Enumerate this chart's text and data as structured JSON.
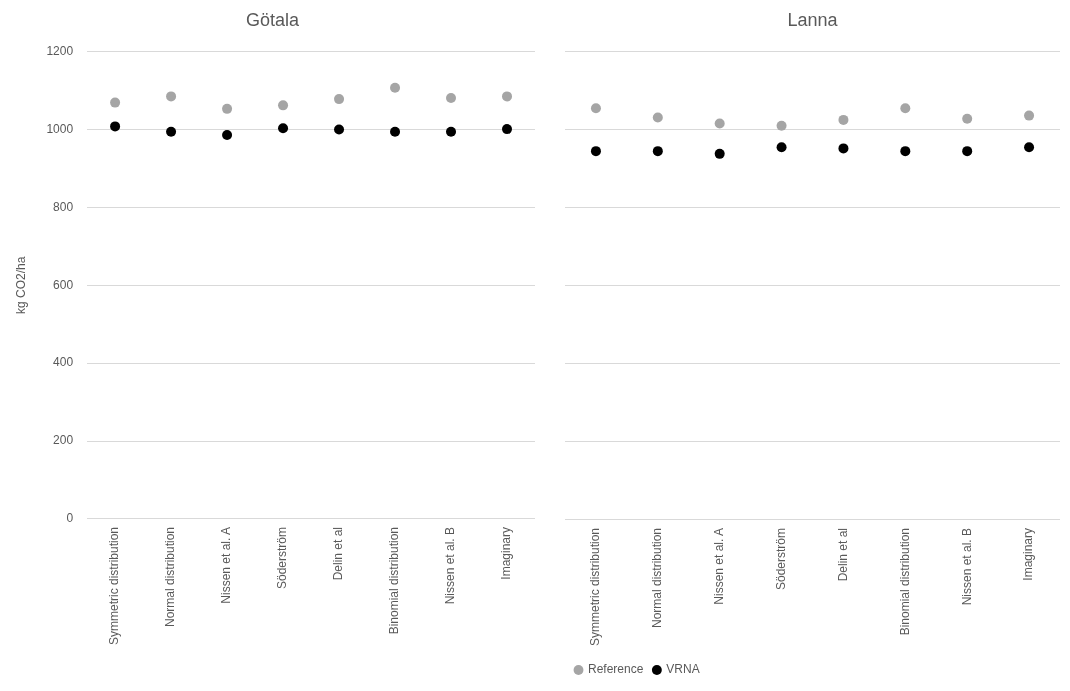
{
  "chart_data": [
    {
      "type": "scatter",
      "title": "Götala",
      "ylabel": "kg CO2/ha",
      "categories": [
        "Symmetric distribution",
        "Normal distribution",
        "Nissen et al. A",
        "Söderström",
        "Delin et al",
        "Binomial distribution",
        "Nissen et al. B",
        "Imaginary"
      ],
      "series": [
        {
          "color": "#a5a5a5",
          "values": [
            1069,
            1085,
            1053,
            1062,
            1078,
            1107,
            1081,
            1085
          ]
        },
        {
          "color": "#000000",
          "values": [
            1008,
            994,
            986,
            1003,
            1000,
            994,
            994,
            1001
          ]
        }
      ],
      "ylim": [
        0,
        1200
      ],
      "yticks": [
        0,
        200,
        400,
        600,
        800,
        1000,
        1200
      ],
      "grid": "y",
      "legend": false,
      "marker": "circle"
    },
    {
      "type": "scatter",
      "title": "Lanna",
      "categories": [
        "Symmetric distribution",
        "Normal distribution",
        "Nissen et al. A",
        "Söderström",
        "Delin et al",
        "Binomial distribution",
        "Nissen et al. B",
        "Imaginary"
      ],
      "series": [
        {
          "name": "Reference",
          "color": "#a5a5a5",
          "values": [
            1055,
            1031,
            1016,
            1010,
            1025,
            1055,
            1028,
            1036
          ]
        },
        {
          "name": "VRNA",
          "color": "#000000",
          "values": [
            945,
            945,
            938,
            955,
            952,
            945,
            945,
            955
          ]
        }
      ],
      "ylim": [
        0,
        1200
      ],
      "yticks": [
        0,
        200,
        400,
        600,
        800,
        1000,
        1200
      ],
      "grid": "y",
      "legend": "bottom left",
      "marker": "circle",
      "tick_labels": "x"
    }
  ]
}
